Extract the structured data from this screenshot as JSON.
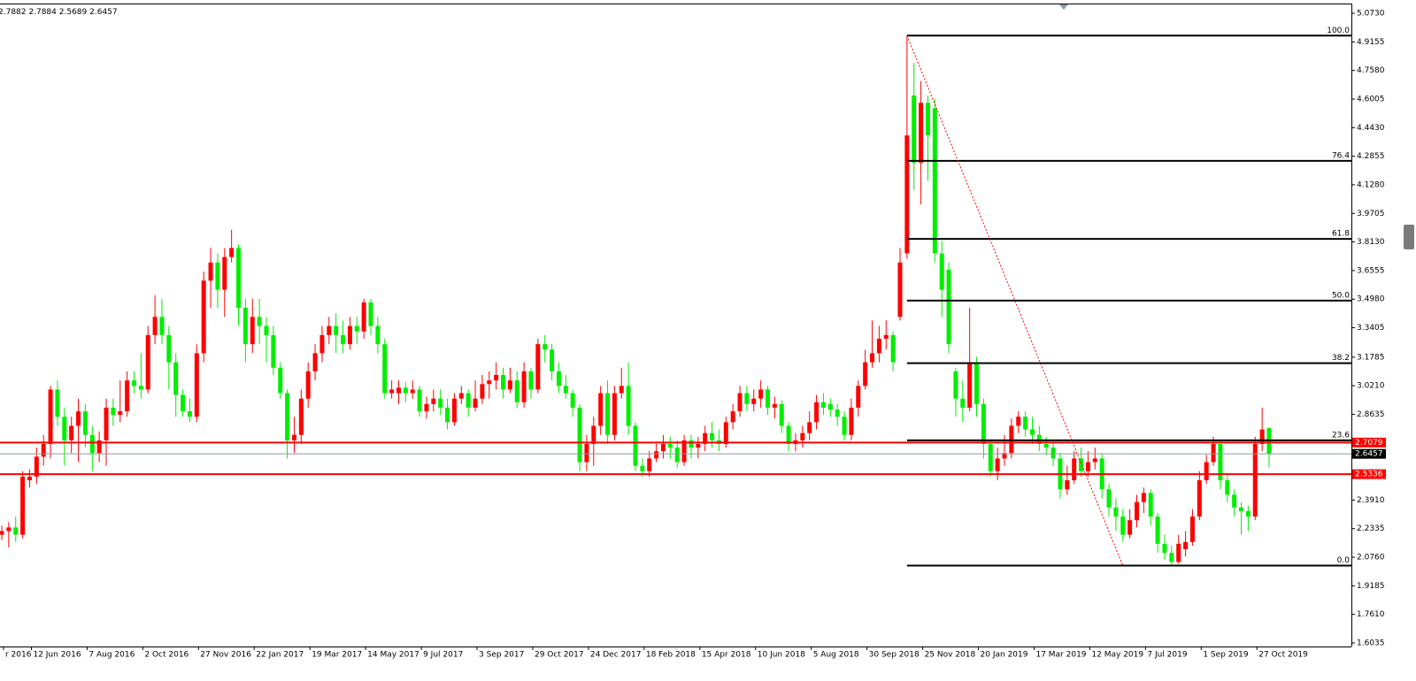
{
  "chart_data": {
    "type": "candlestick",
    "up_color": "#ff0000",
    "down_color": "#00ee00",
    "categories": [
      "r 2016",
      null,
      null,
      null,
      "12 Jun 2016",
      null,
      null,
      null,
      null,
      null,
      null,
      null,
      "7 Aug 2016",
      null,
      null,
      null,
      null,
      null,
      null,
      null,
      "2 Oct 2016",
      null,
      null,
      null,
      null,
      null,
      null,
      null,
      "27 Nov 2016",
      null,
      null,
      null,
      null,
      null,
      null,
      null,
      "22 Jan 2017",
      null,
      null,
      null,
      null,
      null,
      null,
      null,
      "19 Mar 2017",
      null,
      null,
      null,
      null,
      null,
      null,
      null,
      "14 May 2017",
      null,
      null,
      null,
      null,
      null,
      null,
      null,
      "9 Jul 2017",
      null,
      null,
      null,
      null,
      null,
      null,
      null,
      "3 Sep 2017",
      null,
      null,
      null,
      null,
      null,
      null,
      null,
      "29 Oct 2017",
      null,
      null,
      null,
      null,
      null,
      null,
      null,
      "24 Dec 2017",
      null,
      null,
      null,
      null,
      null,
      null,
      null,
      "18 Feb 2018",
      null,
      null,
      null,
      null,
      null,
      null,
      null,
      "15 Apr 2018",
      null,
      null,
      null,
      null,
      null,
      null,
      null,
      "10 Jun 2018",
      null,
      null,
      null,
      null,
      null,
      null,
      null,
      "5 Aug 2018",
      null,
      null,
      null,
      null,
      null,
      null,
      null,
      "30 Sep 2018",
      null,
      null,
      null,
      null,
      null,
      null,
      null,
      "25 Nov 2018",
      null,
      null,
      null,
      null,
      null,
      null,
      null,
      "20 Jan 2019",
      null,
      null,
      null,
      null,
      null,
      null,
      null,
      "17 Mar 2019",
      null,
      null,
      null,
      null,
      null,
      null,
      null,
      "12 May 2019",
      null,
      null,
      null,
      null,
      null,
      null,
      null,
      "7 Jul 2019",
      null,
      null,
      null,
      null,
      null,
      null,
      null,
      "1 Sep 2019",
      null,
      null,
      null,
      null,
      null,
      null,
      null,
      "27 Oct 2019",
      null,
      null
    ],
    "open": [
      2.2,
      2.22,
      2.24,
      2.2,
      2.5,
      2.52,
      2.63,
      2.7,
      3.0,
      2.85,
      2.72,
      2.8,
      2.88,
      2.75,
      2.65,
      2.72,
      2.9,
      2.86,
      2.88,
      3.05,
      3.02,
      3.0,
      3.3,
      3.4,
      3.3,
      3.15,
      2.97,
      2.88,
      2.85,
      3.2,
      3.6,
      3.7,
      3.55,
      3.73,
      3.78,
      3.45,
      3.25,
      3.4,
      3.35,
      3.3,
      3.12,
      2.98,
      2.72,
      2.75,
      2.95,
      3.1,
      3.2,
      3.3,
      3.35,
      3.3,
      3.25,
      3.35,
      3.32,
      3.48,
      3.35,
      3.25,
      2.98,
      2.98,
      3.01,
      2.98,
      3.0,
      2.88,
      2.92,
      2.95,
      2.9,
      2.82,
      2.95,
      2.98,
      2.9,
      2.95,
      3.03,
      3.05,
      3.08,
      3.0,
      3.05,
      2.93,
      3.1,
      3.0,
      3.25,
      3.22,
      3.1,
      3.02,
      2.98,
      2.9,
      2.6,
      2.7,
      2.8,
      2.98,
      2.75,
      2.98,
      3.02,
      2.8,
      2.58,
      2.55,
      2.62,
      2.66,
      2.7,
      2.68,
      2.6,
      2.72,
      2.68,
      2.7,
      2.76,
      2.72,
      2.7,
      2.82,
      2.88,
      2.98,
      2.92,
      2.95,
      3.0,
      2.9,
      2.92,
      2.8,
      2.7,
      2.72,
      2.76,
      2.82,
      2.93,
      2.92,
      2.89,
      2.85,
      2.75,
      2.9,
      3.02,
      3.15,
      3.2,
      3.28,
      3.3,
      3.4,
      3.75,
      4.62,
      4.25,
      4.58,
      4.55,
      3.75,
      3.66,
      3.1,
      2.95,
      2.9,
      3.15,
      2.92,
      2.7,
      2.55,
      2.62,
      2.65,
      2.8,
      2.85,
      2.78,
      2.75,
      2.7,
      2.68,
      2.62,
      2.45,
      2.5,
      2.62,
      2.55,
      2.6,
      2.62,
      2.45,
      2.35,
      2.3,
      2.2,
      2.28,
      2.38,
      2.43,
      2.3,
      2.15,
      2.1,
      2.05,
      2.12,
      2.16,
      2.3,
      2.5,
      2.6,
      2.7,
      2.5,
      2.42,
      2.35,
      2.33,
      2.3,
      2.7,
      2.7882
    ],
    "high": [
      2.25,
      2.27,
      2.3,
      2.55,
      2.56,
      2.68,
      2.75,
      3.02,
      3.05,
      2.9,
      2.85,
      2.95,
      2.92,
      2.8,
      2.77,
      2.95,
      2.95,
      3.05,
      3.1,
      3.1,
      3.2,
      3.35,
      3.52,
      3.5,
      3.35,
      3.2,
      3.0,
      2.95,
      3.25,
      3.65,
      3.78,
      3.75,
      3.78,
      3.88,
      3.8,
      3.5,
      3.5,
      3.5,
      3.4,
      3.35,
      3.15,
      3.0,
      2.85,
      3.0,
      3.15,
      3.25,
      3.35,
      3.4,
      3.42,
      3.38,
      3.4,
      3.4,
      3.5,
      3.5,
      3.4,
      3.28,
      3.05,
      3.05,
      3.04,
      3.05,
      3.02,
      2.96,
      3.0,
      3.0,
      2.95,
      2.98,
      3.02,
      3.0,
      3.05,
      3.08,
      3.1,
      3.15,
      3.12,
      3.12,
      3.1,
      3.15,
      3.12,
      3.28,
      3.3,
      3.25,
      3.15,
      3.08,
      3.0,
      2.92,
      2.75,
      2.85,
      3.02,
      3.05,
      3.02,
      3.12,
      3.15,
      2.82,
      2.62,
      2.66,
      2.7,
      2.75,
      2.74,
      2.72,
      2.75,
      2.75,
      2.74,
      2.8,
      2.82,
      2.78,
      2.85,
      2.92,
      3.02,
      3.02,
      3.0,
      3.05,
      3.02,
      2.96,
      2.94,
      2.82,
      2.76,
      2.8,
      2.88,
      2.97,
      2.98,
      2.95,
      2.92,
      2.88,
      2.95,
      3.05,
      3.22,
      3.38,
      3.35,
      3.38,
      3.32,
      3.78,
      4.95,
      4.8,
      4.7,
      4.62,
      4.6,
      3.82,
      3.7,
      3.12,
      3.05,
      3.45,
      3.18,
      2.95,
      2.72,
      2.68,
      2.75,
      2.84,
      2.88,
      2.88,
      2.85,
      2.8,
      2.74,
      2.72,
      2.65,
      2.58,
      2.66,
      2.68,
      2.66,
      2.68,
      2.65,
      2.48,
      2.4,
      2.34,
      2.34,
      2.42,
      2.46,
      2.45,
      2.32,
      2.2,
      2.14,
      2.2,
      2.22,
      2.34,
      2.55,
      2.64,
      2.74,
      2.72,
      2.54,
      2.45,
      2.38,
      2.36,
      2.74,
      2.9,
      2.7884
    ],
    "low": [
      2.17,
      2.13,
      2.16,
      2.18,
      2.46,
      2.48,
      2.58,
      2.62,
      2.8,
      2.58,
      2.65,
      2.6,
      2.68,
      2.55,
      2.6,
      2.58,
      2.8,
      2.82,
      2.85,
      2.98,
      2.95,
      2.98,
      3.25,
      3.25,
      3.0,
      2.85,
      2.85,
      2.82,
      2.82,
      3.15,
      3.45,
      3.45,
      3.4,
      3.7,
      3.35,
      3.15,
      3.2,
      3.25,
      3.15,
      3.08,
      2.95,
      2.62,
      2.65,
      2.7,
      2.9,
      3.05,
      3.15,
      3.25,
      3.2,
      3.2,
      3.22,
      3.25,
      3.28,
      3.3,
      3.2,
      2.95,
      2.95,
      2.92,
      2.93,
      2.95,
      2.85,
      2.84,
      2.88,
      2.86,
      2.78,
      2.8,
      2.92,
      2.85,
      2.88,
      2.92,
      2.95,
      3.0,
      2.95,
      2.98,
      2.9,
      2.9,
      2.95,
      2.98,
      3.15,
      3.05,
      2.98,
      2.95,
      2.85,
      2.55,
      2.55,
      2.58,
      2.75,
      2.7,
      2.72,
      2.95,
      2.75,
      2.55,
      2.52,
      2.52,
      2.6,
      2.62,
      2.62,
      2.57,
      2.58,
      2.62,
      2.62,
      2.66,
      2.68,
      2.66,
      2.68,
      2.78,
      2.85,
      2.88,
      2.88,
      2.9,
      2.86,
      2.84,
      2.76,
      2.66,
      2.66,
      2.68,
      2.72,
      2.78,
      2.86,
      2.85,
      2.8,
      2.72,
      2.72,
      2.85,
      3.0,
      3.12,
      3.15,
      3.22,
      3.1,
      3.38,
      3.72,
      4.1,
      4.02,
      4.15,
      3.7,
      3.4,
      3.2,
      2.85,
      2.82,
      2.88,
      2.85,
      2.62,
      2.52,
      2.5,
      2.58,
      2.62,
      2.76,
      2.74,
      2.7,
      2.66,
      2.64,
      2.58,
      2.4,
      2.42,
      2.48,
      2.52,
      2.52,
      2.56,
      2.4,
      2.3,
      2.22,
      2.16,
      2.18,
      2.24,
      2.32,
      2.25,
      2.1,
      2.06,
      2.03,
      2.04,
      2.08,
      2.14,
      2.28,
      2.48,
      2.58,
      2.45,
      2.38,
      2.3,
      2.2,
      2.22,
      2.28,
      2.66,
      2.5689
    ],
    "close": [
      2.22,
      2.24,
      2.2,
      2.52,
      2.52,
      2.63,
      2.7,
      3.0,
      2.85,
      2.72,
      2.8,
      2.88,
      2.75,
      2.65,
      2.72,
      2.9,
      2.86,
      2.88,
      3.05,
      3.02,
      3.0,
      3.3,
      3.4,
      3.3,
      3.15,
      2.97,
      2.88,
      2.85,
      3.2,
      3.6,
      3.7,
      3.55,
      3.73,
      3.78,
      3.45,
      3.25,
      3.4,
      3.35,
      3.3,
      3.12,
      2.98,
      2.72,
      2.75,
      2.95,
      3.1,
      3.2,
      3.3,
      3.35,
      3.3,
      3.25,
      3.35,
      3.32,
      3.48,
      3.35,
      3.25,
      2.98,
      3.0,
      3.01,
      2.98,
      3.0,
      2.88,
      2.92,
      2.95,
      2.9,
      2.82,
      2.95,
      2.98,
      2.9,
      2.95,
      3.03,
      3.05,
      3.08,
      3.0,
      3.05,
      2.93,
      3.1,
      3.0,
      3.25,
      3.22,
      3.1,
      3.02,
      2.98,
      2.9,
      2.6,
      2.7,
      2.8,
      2.98,
      2.75,
      2.98,
      3.02,
      2.8,
      2.58,
      2.55,
      2.62,
      2.66,
      2.7,
      2.68,
      2.6,
      2.72,
      2.68,
      2.7,
      2.76,
      2.72,
      2.7,
      2.82,
      2.88,
      2.98,
      2.92,
      2.95,
      3.0,
      2.9,
      2.92,
      2.8,
      2.7,
      2.72,
      2.76,
      2.82,
      2.93,
      2.9,
      2.89,
      2.85,
      2.75,
      2.9,
      3.02,
      3.15,
      3.2,
      3.28,
      3.3,
      3.15,
      3.7,
      4.4,
      4.25,
      4.58,
      4.4,
      3.75,
      3.55,
      3.25,
      2.95,
      2.9,
      3.15,
      2.92,
      2.7,
      2.55,
      2.62,
      2.65,
      2.8,
      2.85,
      2.78,
      2.75,
      2.7,
      2.68,
      2.62,
      2.45,
      2.5,
      2.62,
      2.55,
      2.6,
      2.62,
      2.45,
      2.35,
      2.3,
      2.2,
      2.28,
      2.38,
      2.43,
      2.3,
      2.15,
      2.1,
      2.05,
      2.15,
      2.16,
      2.3,
      2.5,
      2.6,
      2.7,
      2.5,
      2.42,
      2.35,
      2.33,
      2.3,
      2.7,
      2.78,
      2.6457
    ],
    "ylim": [
      1.584,
      5.117
    ],
    "yticks": [
      {
        "value": 5.073,
        "label": "5.0730"
      },
      4.9155,
      {
        "value": 4.758,
        "label": "4.7580"
      },
      4.6005,
      {
        "value": 4.443,
        "label": "4.4430"
      },
      4.2855,
      {
        "value": 4.128,
        "label": "4.1280"
      },
      3.9705,
      {
        "value": 3.813,
        "label": "3.8130"
      },
      3.6555,
      {
        "value": 3.498,
        "label": "3.4980"
      },
      3.3405,
      3.1785,
      {
        "value": 3.021,
        "label": "3.0210"
      },
      2.8635,
      {
        "value": 2.391,
        "label": "2.3910"
      },
      2.2335,
      {
        "value": 2.076,
        "label": "2.0760"
      },
      1.9185,
      {
        "value": 1.761,
        "label": "1.7610"
      },
      1.6035
    ],
    "price_lines": [
      {
        "value": 2.7079,
        "color": "#ff0000"
      },
      {
        "value": 2.5336,
        "color": "#ff0000"
      }
    ],
    "current_price_color": "#8a9aa0",
    "fib": {
      "start_index": 130,
      "end_index": 161,
      "color": "#000000",
      "trend_color": "#ff0000",
      "levels": [
        {
          "label": "100.0",
          "price": 4.95
        },
        {
          "label": "76.4",
          "price": 4.26
        },
        {
          "label": "61.8",
          "price": 3.83
        },
        {
          "label": "50.0",
          "price": 3.49
        },
        {
          "label": "38.2",
          "price": 3.145
        },
        {
          "label": "23.6",
          "price": 2.72
        },
        {
          "label": "0.0",
          "price": 2.03
        }
      ]
    }
  }
}
